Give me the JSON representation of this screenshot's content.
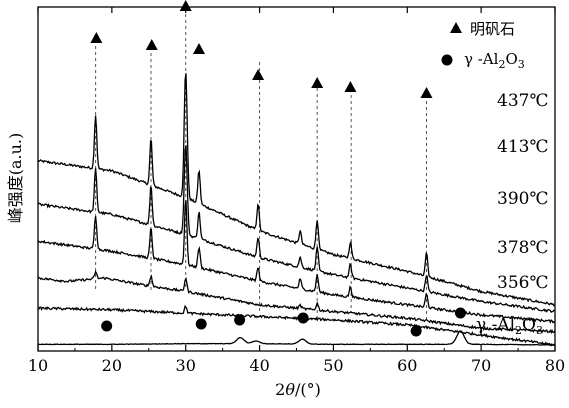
{
  "chart_data": {
    "type": "line",
    "xlabel_parts": [
      "2",
      "θ",
      "/(°)"
    ],
    "ylabel": "峰强度(a.u.)",
    "xlim": [
      10,
      80
    ],
    "x_ticks": [
      10,
      20,
      30,
      40,
      50,
      60,
      70,
      80
    ],
    "grid": false,
    "legend_position": "top-right",
    "legend": [
      {
        "marker": "triangle",
        "label": "明矾石",
        "phase": "alunite"
      },
      {
        "marker": "circle",
        "label_parts": [
          "γ -Al",
          "2",
          "O",
          "3"
        ],
        "phase": "gamma-alumina"
      }
    ],
    "reference_lines_2theta": [
      17.8,
      25.3,
      30.0,
      40.0,
      47.8,
      52.4,
      62.6
    ],
    "alunite_peak_markers_2theta": [
      17.9,
      25.4,
      30.0,
      31.8,
      39.8,
      47.8,
      52.3,
      62.6
    ],
    "gamma_al2o3_marker_2theta": [
      19.3,
      32.1,
      37.3,
      45.9,
      61.2,
      67.2
    ],
    "series": [
      {
        "name": "437℃",
        "label": "437℃",
        "baseline": [
          [
            10,
            0.55
          ],
          [
            20,
            0.52
          ],
          [
            30,
            0.44
          ],
          [
            40,
            0.34
          ],
          [
            50,
            0.27
          ],
          [
            60,
            0.22
          ],
          [
            70,
            0.16
          ],
          [
            80,
            0.12
          ]
        ],
        "peaks": [
          [
            17.8,
            0.16
          ],
          [
            25.3,
            0.14
          ],
          [
            30.0,
            0.38
          ],
          [
            31.8,
            0.1
          ],
          [
            39.8,
            0.08
          ],
          [
            45.5,
            0.04
          ],
          [
            47.8,
            0.09
          ],
          [
            52.3,
            0.05
          ],
          [
            62.6,
            0.07
          ]
        ]
      },
      {
        "name": "413℃",
        "label": "413℃",
        "baseline": [
          [
            10,
            0.42
          ],
          [
            20,
            0.39
          ],
          [
            30,
            0.33
          ],
          [
            40,
            0.26
          ],
          [
            50,
            0.21
          ],
          [
            60,
            0.17
          ],
          [
            70,
            0.13
          ],
          [
            80,
            0.1
          ]
        ],
        "peaks": [
          [
            17.8,
            0.13
          ],
          [
            25.3,
            0.12
          ],
          [
            30.0,
            0.27
          ],
          [
            31.8,
            0.08
          ],
          [
            39.8,
            0.06
          ],
          [
            45.5,
            0.03
          ],
          [
            47.8,
            0.07
          ],
          [
            52.3,
            0.04
          ],
          [
            62.6,
            0.05
          ]
        ]
      },
      {
        "name": "390℃",
        "label": "390℃",
        "baseline": [
          [
            10,
            0.31
          ],
          [
            20,
            0.28
          ],
          [
            30,
            0.24
          ],
          [
            40,
            0.19
          ],
          [
            50,
            0.15
          ],
          [
            60,
            0.12
          ],
          [
            70,
            0.09
          ],
          [
            80,
            0.07
          ]
        ],
        "peaks": [
          [
            17.8,
            0.1
          ],
          [
            25.3,
            0.09
          ],
          [
            30.0,
            0.2
          ],
          [
            31.8,
            0.06
          ],
          [
            39.8,
            0.04
          ],
          [
            45.5,
            0.03
          ],
          [
            47.8,
            0.05
          ],
          [
            52.3,
            0.03
          ],
          [
            62.6,
            0.04
          ]
        ]
      },
      {
        "name": "378℃",
        "label": "378℃",
        "baseline": [
          [
            10,
            0.2
          ],
          [
            14,
            0.19
          ],
          [
            19,
            0.2
          ],
          [
            24,
            0.18
          ],
          [
            30,
            0.16
          ],
          [
            40,
            0.12
          ],
          [
            50,
            0.1
          ],
          [
            60,
            0.08
          ],
          [
            70,
            0.05
          ],
          [
            80,
            0.04
          ]
        ],
        "peaks": [
          [
            17.8,
            0.02
          ],
          [
            25.3,
            0.03
          ],
          [
            30.0,
            0.04
          ],
          [
            45.5,
            0.01
          ],
          [
            47.8,
            0.02
          ]
        ]
      },
      {
        "name": "356℃",
        "label": "356℃",
        "baseline": [
          [
            10,
            0.11
          ],
          [
            20,
            0.105
          ],
          [
            30,
            0.095
          ],
          [
            40,
            0.085
          ],
          [
            50,
            0.075
          ],
          [
            60,
            0.06
          ],
          [
            70,
            0.03
          ],
          [
            80,
            0.0
          ]
        ],
        "peaks": [
          [
            30.0,
            0.02
          ],
          [
            45.5,
            0.01
          ]
        ]
      },
      {
        "name": "γ-Al2O3",
        "label_parts": [
          "γ -Al",
          "2",
          "O",
          "3"
        ],
        "baseline": [
          [
            10,
            0.002
          ],
          [
            20,
            0.002
          ],
          [
            30,
            0.004
          ],
          [
            40,
            0.004
          ],
          [
            50,
            0.002
          ],
          [
            60,
            0.002
          ],
          [
            70,
            0.002
          ],
          [
            80,
            0.0
          ]
        ],
        "peaks": [
          [
            37.4,
            0.018
          ],
          [
            39.5,
            0.008
          ],
          [
            45.8,
            0.014
          ],
          [
            67.2,
            0.04
          ]
        ]
      }
    ]
  }
}
